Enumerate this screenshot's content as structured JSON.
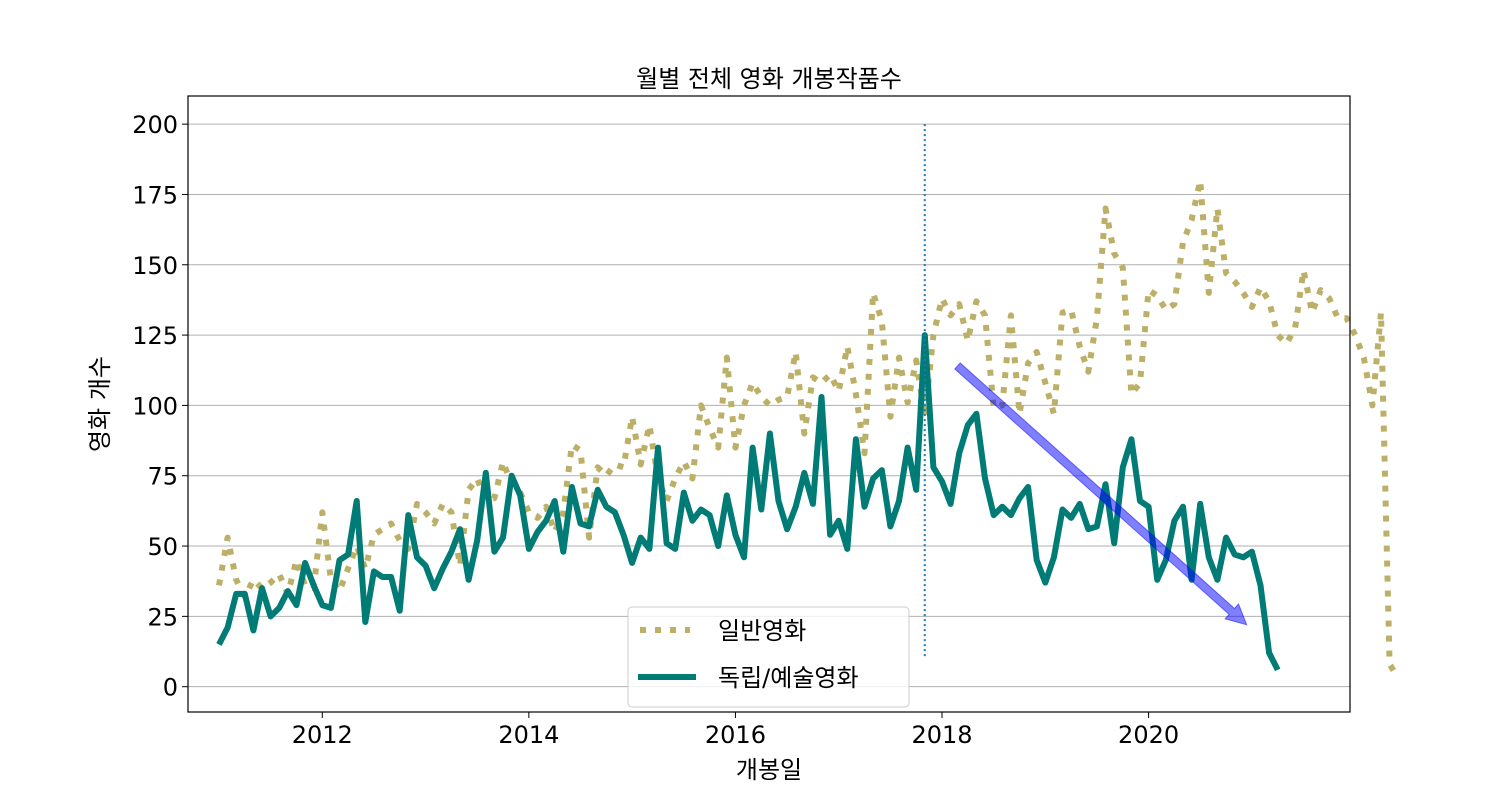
{
  "chart_data": {
    "type": "line",
    "title": "월별 전체 영화 개봉작품수",
    "xlabel": "개봉일",
    "ylabel": "영화 개수",
    "xlim": [
      2010.7,
      2021.95
    ],
    "ylim": [
      -9,
      210
    ],
    "xticks": [
      2012,
      2014,
      2016,
      2018,
      2020
    ],
    "xtick_labels": [
      "2012",
      "2014",
      "2016",
      "2018",
      "2020"
    ],
    "yticks": [
      0,
      25,
      50,
      75,
      100,
      125,
      150,
      175,
      200
    ],
    "ytick_labels": [
      "0",
      "25",
      "50",
      "75",
      "100",
      "125",
      "150",
      "175",
      "200"
    ],
    "grid": "horizontal",
    "legend_position": "lower-center",
    "x_start_year": 2011,
    "x_step_months": 1,
    "series": [
      {
        "name": "일반영화",
        "color": "#bcb068",
        "style": "dotted",
        "values": [
          36,
          53,
          38,
          32,
          38,
          35,
          37,
          40,
          33,
          45,
          36,
          35,
          62,
          38,
          34,
          42,
          50,
          42,
          54,
          56,
          58,
          52,
          49,
          65,
          62,
          58,
          65,
          62,
          43,
          70,
          74,
          66,
          67,
          80,
          72,
          69,
          62,
          60,
          64,
          55,
          62,
          86,
          84,
          53,
          78,
          75,
          79,
          78,
          96,
          79,
          93,
          74,
          66,
          74,
          80,
          74,
          100,
          92,
          85,
          117,
          85,
          100,
          108,
          103,
          100,
          102,
          103,
          119,
          90,
          110,
          108,
          111,
          105,
          121,
          104,
          83,
          140,
          130,
          96,
          117,
          101,
          116,
          96,
          125,
          138,
          132,
          136,
          123,
          137,
          132,
          99,
          100,
          132,
          97,
          115,
          119,
          108,
          97,
          133,
          134,
          121,
          112,
          131,
          170,
          154,
          149,
          104,
          108,
          141,
          139,
          134,
          136,
          158,
          166,
          180,
          140,
          170,
          147,
          144,
          140,
          135,
          142,
          137,
          125,
          122,
          127,
          148,
          133,
          141,
          138,
          131,
          131,
          125,
          117,
          100,
          133,
          8,
          3
        ]
      },
      {
        "name": "독립/예술영화",
        "color": "#007b76",
        "style": "solid",
        "values": [
          15,
          21,
          33,
          33,
          20,
          35,
          25,
          28,
          34,
          29,
          44,
          36,
          29,
          28,
          45,
          47,
          66,
          23,
          41,
          39,
          39,
          27,
          61,
          46,
          43,
          35,
          42,
          48,
          56,
          38,
          52,
          76,
          48,
          53,
          75,
          68,
          49,
          55,
          59,
          66,
          48,
          71,
          58,
          57,
          70,
          64,
          62,
          54,
          44,
          53,
          49,
          85,
          51,
          49,
          69,
          59,
          63,
          61,
          50,
          68,
          54,
          46,
          85,
          63,
          90,
          66,
          56,
          64,
          76,
          65,
          103,
          54,
          59,
          49,
          88,
          64,
          74,
          77,
          57,
          66,
          85,
          70,
          125,
          78,
          73,
          65,
          83,
          93,
          97,
          74,
          61,
          64,
          61,
          67,
          71,
          45,
          37,
          46,
          63,
          60,
          65,
          56,
          57,
          72,
          51,
          78,
          88,
          66,
          64,
          38,
          45,
          59,
          64,
          38,
          65,
          46,
          38,
          53,
          47,
          46,
          48,
          36,
          12,
          6
        ]
      }
    ],
    "annotations": [
      {
        "type": "vline",
        "x": 2017.833,
        "y_from": 10,
        "y_to": 200,
        "color": "#1f77b4",
        "style": "dotted"
      },
      {
        "type": "arrow",
        "x_from": 2018.15,
        "y_from": 114,
        "x_to": 2020.95,
        "y_to": 22,
        "color": "#0000ff",
        "opacity": 0.5
      }
    ]
  }
}
